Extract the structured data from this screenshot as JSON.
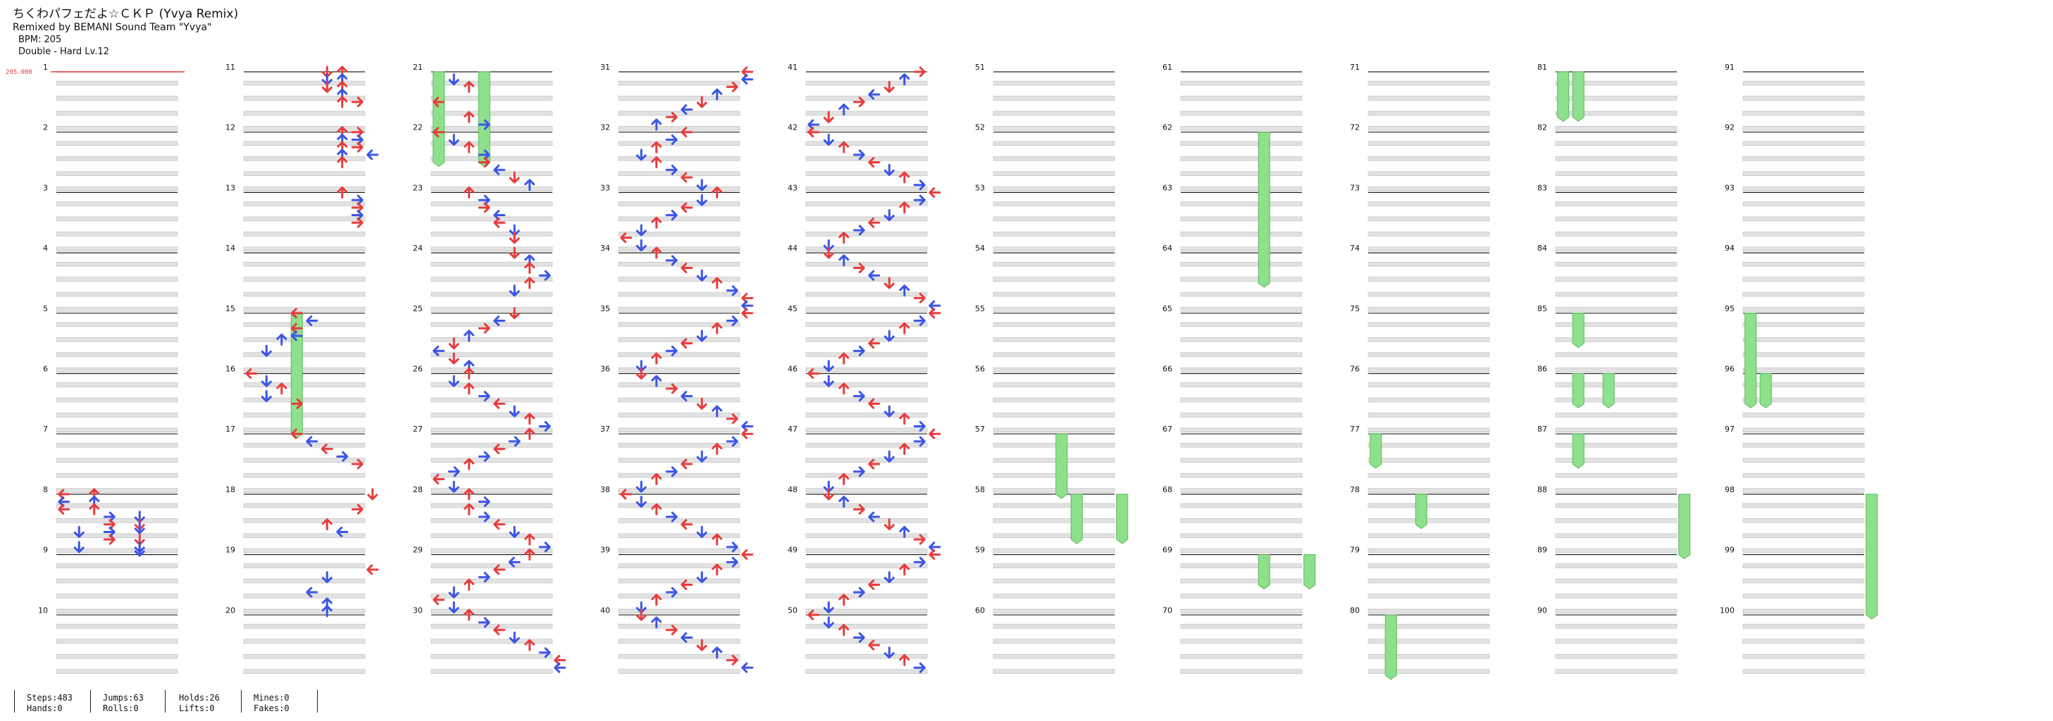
{
  "song": {
    "title": "ちくわパフェだよ☆ＣＫＰ (Yvya Remix)",
    "remix": "Remixed by BEMANI Sound Team \"Yvya\"",
    "bpm_text": "BPM: 205",
    "difficulty_text": "Double - Hard Lv.12"
  },
  "chart_data": {
    "type": "note-chart",
    "columns": 10,
    "measures_per_column": 10,
    "lanes": 8,
    "bpm_marker": "205.000",
    "colors": {
      "arrow_red": "#e83c3c",
      "arrow_blue": "#3b55e6",
      "hold_green": "#8fe08c",
      "hold_stroke": "#5cb85c",
      "stripe": "#e2e2e2"
    },
    "notes": {
      "m8": [
        [
          0,
          0
        ],
        [
          0,
          2
        ],
        [
          4,
          0
        ],
        [
          4,
          2
        ],
        [
          8,
          0
        ],
        [
          8,
          2
        ],
        [
          12,
          3
        ],
        [
          12,
          5
        ],
        [
          16,
          3
        ],
        [
          16,
          5
        ],
        [
          18,
          5
        ],
        [
          20,
          1
        ],
        [
          20,
          3
        ],
        [
          24,
          3
        ],
        [
          24,
          5
        ],
        [
          28,
          1
        ],
        [
          28,
          5
        ],
        [
          30,
          5
        ]
      ],
      "m11": [
        [
          0,
          5
        ],
        [
          0,
          6
        ],
        [
          4,
          5
        ],
        [
          4,
          6
        ],
        [
          8,
          5
        ],
        [
          8,
          6
        ],
        [
          12,
          6
        ],
        [
          16,
          6
        ],
        [
          16,
          7
        ]
      ],
      "m12": [
        [
          0,
          6
        ],
        [
          0,
          7
        ],
        [
          4,
          6
        ],
        [
          4,
          7
        ],
        [
          8,
          6
        ],
        [
          8,
          7
        ],
        [
          12,
          6
        ],
        [
          12,
          8
        ],
        [
          16,
          6
        ]
      ],
      "m13": [
        [
          0,
          6
        ],
        [
          4,
          7
        ],
        [
          8,
          7
        ],
        [
          12,
          7
        ],
        [
          16,
          7
        ]
      ],
      "m15": [
        [
          0,
          3,
          "l"
        ],
        [
          4,
          4,
          "l"
        ],
        [
          8,
          3,
          "l"
        ],
        [
          12,
          3,
          "l"
        ],
        [
          14,
          2
        ],
        [
          20,
          1
        ]
      ],
      "m16": [
        [
          0,
          0
        ],
        [
          4,
          1,
          "d"
        ],
        [
          8,
          2
        ],
        [
          12,
          1,
          "d"
        ],
        [
          16,
          3
        ]
      ],
      "m17": [
        [
          0,
          3,
          "l"
        ],
        [
          4,
          4,
          "l"
        ],
        [
          8,
          5,
          "l"
        ],
        [
          12,
          6,
          "r"
        ],
        [
          16,
          7,
          "r"
        ]
      ],
      "m18": [
        [
          0,
          8,
          "d"
        ],
        [
          8,
          7
        ],
        [
          16,
          5,
          "u"
        ],
        [
          20,
          6,
          "l"
        ]
      ],
      "m19": [
        [
          8,
          8
        ],
        [
          12,
          5,
          "d"
        ],
        [
          20,
          4
        ],
        [
          26,
          5,
          "u"
        ],
        [
          30,
          5,
          "u"
        ]
      ],
      "m21": [
        [
          4,
          1
        ],
        [
          8,
          2
        ],
        [
          16,
          0
        ],
        [
          24,
          2
        ],
        [
          28,
          3
        ]
      ],
      "m22": [
        [
          0,
          0
        ],
        [
          4,
          1
        ],
        [
          8,
          2
        ],
        [
          12,
          3
        ],
        [
          16,
          3
        ],
        [
          20,
          4
        ],
        [
          24,
          5
        ],
        [
          28,
          6
        ]
      ],
      "m23": [
        [
          0,
          2
        ],
        [
          4,
          3
        ],
        [
          8,
          3
        ],
        [
          12,
          4
        ],
        [
          16,
          4
        ],
        [
          20,
          5
        ],
        [
          24,
          5
        ]
      ],
      "m24": [
        [
          0,
          5
        ],
        [
          4,
          6
        ],
        [
          8,
          6
        ],
        [
          12,
          7
        ],
        [
          16,
          6
        ],
        [
          20,
          5
        ]
      ],
      "m25": [
        [
          0,
          5
        ],
        [
          4,
          4
        ],
        [
          8,
          3
        ],
        [
          12,
          2
        ],
        [
          16,
          1
        ],
        [
          20,
          0
        ],
        [
          24,
          1
        ],
        [
          28,
          2
        ]
      ],
      "m26": [
        [
          0,
          2
        ],
        [
          4,
          1
        ],
        [
          8,
          2
        ],
        [
          12,
          3
        ],
        [
          16,
          4
        ],
        [
          20,
          5
        ],
        [
          24,
          6
        ],
        [
          28,
          7
        ]
      ],
      "m27": [
        [
          0,
          6
        ],
        [
          4,
          5,
          "r"
        ],
        [
          8,
          4
        ],
        [
          12,
          3,
          "r"
        ],
        [
          16,
          2
        ],
        [
          20,
          1,
          "r"
        ],
        [
          24,
          0
        ],
        [
          28,
          1
        ]
      ],
      "m28": [
        [
          0,
          2
        ],
        [
          4,
          3
        ],
        [
          8,
          2
        ],
        [
          12,
          3
        ],
        [
          16,
          4
        ],
        [
          20,
          5
        ],
        [
          24,
          6
        ],
        [
          28,
          7
        ]
      ],
      "m29": [
        [
          0,
          6
        ],
        [
          4,
          5,
          "l"
        ],
        [
          8,
          4,
          "l"
        ],
        [
          12,
          3
        ],
        [
          16,
          2
        ],
        [
          20,
          1
        ],
        [
          24,
          0
        ],
        [
          28,
          1
        ]
      ],
      "m30": [
        [
          0,
          2
        ],
        [
          4,
          3
        ],
        [
          8,
          4
        ],
        [
          12,
          5
        ],
        [
          16,
          6
        ],
        [
          20,
          7
        ],
        [
          24,
          8
        ],
        [
          28,
          8
        ]
      ],
      "m31": [
        [
          0,
          8
        ],
        [
          4,
          8
        ],
        [
          8,
          7
        ],
        [
          12,
          6
        ],
        [
          16,
          5
        ],
        [
          20,
          4
        ],
        [
          24,
          3
        ],
        [
          28,
          2
        ]
      ],
      "m32": [
        [
          0,
          4
        ],
        [
          4,
          3
        ],
        [
          8,
          2
        ],
        [
          12,
          1
        ],
        [
          16,
          2
        ],
        [
          20,
          3
        ],
        [
          24,
          4
        ],
        [
          28,
          5
        ]
      ],
      "m33": [
        [
          0,
          6
        ],
        [
          4,
          5
        ],
        [
          8,
          4
        ],
        [
          12,
          3
        ],
        [
          16,
          2
        ],
        [
          20,
          1
        ],
        [
          24,
          0
        ],
        [
          28,
          1
        ]
      ],
      "m34": [
        [
          0,
          2
        ],
        [
          4,
          3
        ],
        [
          8,
          4
        ],
        [
          12,
          5
        ],
        [
          16,
          6
        ],
        [
          20,
          7
        ],
        [
          24,
          8
        ],
        [
          28,
          8
        ]
      ],
      "m35": [
        [
          0,
          8
        ],
        [
          4,
          7
        ],
        [
          8,
          6
        ],
        [
          12,
          5
        ],
        [
          16,
          4
        ],
        [
          20,
          3
        ],
        [
          24,
          2
        ],
        [
          28,
          1
        ]
      ],
      "m36": [
        [
          0,
          1
        ],
        [
          4,
          2
        ],
        [
          8,
          3
        ],
        [
          12,
          4
        ],
        [
          16,
          5
        ],
        [
          20,
          6
        ],
        [
          24,
          7
        ],
        [
          28,
          8
        ]
      ],
      "m37": [
        [
          0,
          8
        ],
        [
          4,
          7
        ],
        [
          8,
          6
        ],
        [
          12,
          5
        ],
        [
          16,
          4
        ],
        [
          20,
          3
        ],
        [
          24,
          2
        ],
        [
          28,
          1
        ]
      ],
      "m38": [
        [
          0,
          0
        ],
        [
          4,
          1
        ],
        [
          8,
          2
        ],
        [
          12,
          3
        ],
        [
          16,
          4
        ],
        [
          20,
          5
        ],
        [
          24,
          6
        ],
        [
          28,
          7
        ]
      ],
      "m39": [
        [
          0,
          8
        ],
        [
          4,
          7
        ],
        [
          8,
          6
        ],
        [
          12,
          5
        ],
        [
          16,
          4
        ],
        [
          20,
          3
        ],
        [
          24,
          2
        ],
        [
          28,
          1
        ]
      ],
      "m40": [
        [
          0,
          1
        ],
        [
          4,
          2
        ],
        [
          8,
          3
        ],
        [
          12,
          4
        ],
        [
          16,
          5
        ],
        [
          20,
          6
        ],
        [
          24,
          7
        ],
        [
          28,
          8
        ]
      ],
      "m41": [
        [
          0,
          7
        ],
        [
          4,
          6
        ],
        [
          8,
          5
        ],
        [
          12,
          4
        ],
        [
          16,
          3
        ],
        [
          20,
          2
        ],
        [
          24,
          1
        ],
        [
          28,
          0
        ]
      ],
      "m42": [
        [
          0,
          0
        ],
        [
          4,
          1
        ],
        [
          8,
          2
        ],
        [
          12,
          3
        ],
        [
          16,
          4
        ],
        [
          20,
          5
        ],
        [
          24,
          6
        ],
        [
          28,
          7
        ]
      ],
      "m43": [
        [
          0,
          8
        ],
        [
          4,
          7
        ],
        [
          8,
          6
        ],
        [
          12,
          5
        ],
        [
          16,
          4
        ],
        [
          20,
          3
        ],
        [
          24,
          2
        ],
        [
          28,
          1
        ]
      ],
      "m44": [
        [
          0,
          1
        ],
        [
          4,
          2
        ],
        [
          8,
          3
        ],
        [
          12,
          4
        ],
        [
          16,
          5
        ],
        [
          20,
          6
        ],
        [
          24,
          7
        ],
        [
          28,
          8
        ]
      ],
      "m45": [
        [
          0,
          8
        ],
        [
          4,
          7
        ],
        [
          8,
          6
        ],
        [
          12,
          5
        ],
        [
          16,
          4
        ],
        [
          20,
          3
        ],
        [
          24,
          2
        ],
        [
          28,
          1
        ]
      ],
      "m46": [
        [
          0,
          0
        ],
        [
          4,
          1
        ],
        [
          8,
          2
        ],
        [
          12,
          3
        ],
        [
          16,
          4
        ],
        [
          20,
          5
        ],
        [
          24,
          6
        ],
        [
          28,
          7
        ]
      ],
      "m47": [
        [
          0,
          8
        ],
        [
          4,
          7
        ],
        [
          8,
          6
        ],
        [
          12,
          5
        ],
        [
          16,
          4
        ],
        [
          20,
          3
        ],
        [
          24,
          2
        ],
        [
          28,
          1
        ]
      ],
      "m48": [
        [
          0,
          1
        ],
        [
          4,
          2
        ],
        [
          8,
          3
        ],
        [
          12,
          4
        ],
        [
          16,
          5
        ],
        [
          20,
          6
        ],
        [
          24,
          7
        ],
        [
          28,
          8
        ]
      ],
      "m49": [
        [
          0,
          8
        ],
        [
          4,
          7
        ],
        [
          8,
          6
        ],
        [
          12,
          5
        ],
        [
          16,
          4
        ],
        [
          20,
          3
        ],
        [
          24,
          2
        ],
        [
          28,
          1
        ]
      ],
      "m50": [
        [
          0,
          0
        ],
        [
          4,
          1
        ],
        [
          8,
          2
        ],
        [
          12,
          3
        ],
        [
          16,
          4
        ],
        [
          20,
          5
        ],
        [
          24,
          6
        ],
        [
          28,
          7
        ]
      ]
    },
    "holds": [
      {
        "m": 15,
        "b": 0,
        "lane": 3,
        "len": 8
      },
      {
        "m": 21,
        "b": 0,
        "lane": 0,
        "len": 6
      },
      {
        "m": 21,
        "b": 0,
        "lane": 3,
        "len": 6
      },
      {
        "m": 81,
        "b": 0,
        "lane": 0,
        "len": 3
      },
      {
        "m": 81,
        "b": 0,
        "lane": 1,
        "len": 3
      },
      {
        "m": 85,
        "b": 0,
        "lane": 1,
        "len": 2
      },
      {
        "m": 86,
        "b": 0,
        "lane": 1,
        "len": 2
      },
      {
        "m": 86,
        "b": 0,
        "lane": 3,
        "len": 2
      },
      {
        "m": 87,
        "b": 0,
        "lane": 1,
        "len": 2
      },
      {
        "m": 95,
        "b": 0,
        "lane": 0,
        "len": 6
      },
      {
        "m": 96,
        "b": 0,
        "lane": 1,
        "len": 2
      },
      {
        "m": 98,
        "b": 0,
        "lane": 8,
        "len": 8
      },
      {
        "m": 88,
        "b": 0,
        "lane": 8,
        "len": 4
      },
      {
        "m": 57,
        "b": 0,
        "lane": 4,
        "len": 4
      },
      {
        "m": 58,
        "b": 0,
        "lane": 5,
        "len": 3
      },
      {
        "m": 58,
        "b": 0,
        "lane": 8,
        "len": 3
      },
      {
        "m": 62,
        "b": 0,
        "lane": 5,
        "len": 10
      },
      {
        "m": 69,
        "b": 0,
        "lane": 5,
        "len": 2
      },
      {
        "m": 69,
        "b": 0,
        "lane": 8,
        "len": 2
      },
      {
        "m": 77,
        "b": 0,
        "lane": 0,
        "len": 2
      },
      {
        "m": 78,
        "b": 0,
        "lane": 3,
        "len": 2
      },
      {
        "m": 80,
        "b": 0,
        "lane": 1,
        "len": 4
      }
    ]
  },
  "stats": {
    "steps": "Steps:483",
    "hands": "Hands:0",
    "jumps": "Jumps:63",
    "rolls": "Rolls:0",
    "holds": "Holds:26",
    "lifts": "Lifts:0",
    "mines": "Mines:0",
    "fakes": "Fakes:0"
  }
}
